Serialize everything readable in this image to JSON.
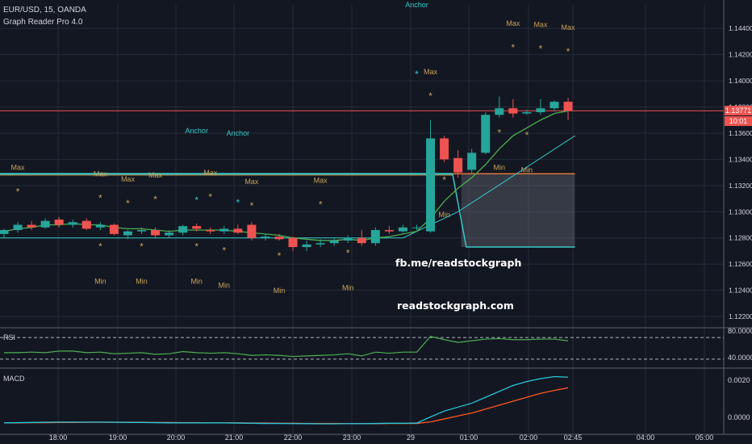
{
  "header": {
    "symbol_line": "EUR/USD, 15, OANDA",
    "indicator_line": "Graph Reader Pro 4.0"
  },
  "watermarks": {
    "facebook": "fb.me/readstockgraph",
    "website": "readstockgraph.com"
  },
  "price_tag": {
    "value": "1.13771",
    "countdown": "10:01",
    "color": "#ef5350"
  },
  "panes": {
    "rsi": {
      "label": "RSI",
      "levels": [
        "80.0000",
        "40.0000"
      ]
    },
    "macd": {
      "label": "MACD",
      "levels": [
        "0.0020",
        "0.0000"
      ]
    }
  },
  "colors": {
    "background": "#131722",
    "grid": "#262b3a",
    "up_candle": "#26a69a",
    "down_candle": "#ef5350",
    "annotation": "#c8a35a",
    "anchor": "#36c9c6",
    "ema": "#4caf50",
    "support_line": "#36c9c6",
    "rsi_line": "#4caf50",
    "macd_line": "#26c6da",
    "signal_line": "#ff5722"
  },
  "chart_data": {
    "type": "candlestick",
    "symbol": "EUR/USD",
    "interval": "15",
    "x_ticks": [
      "18:00",
      "19:00",
      "20:00",
      "21:00",
      "22:00",
      "23:00",
      "29",
      "01:00",
      "02:00",
      "02:45",
      "04:00",
      "05:00"
    ],
    "y_ticks": [
      "1.14400",
      "1.14200",
      "1.14000",
      "1.13800",
      "1.13600",
      "1.13400",
      "1.13200",
      "1.13000",
      "1.12800",
      "1.12600",
      "1.12400",
      "1.12200"
    ],
    "ylim": [
      1.1212,
      1.1458
    ],
    "candles": [
      [
        1.1283,
        1.1287,
        1.128,
        1.1286
      ],
      [
        1.1286,
        1.1292,
        1.1284,
        1.129
      ],
      [
        1.129,
        1.1293,
        1.1286,
        1.1288
      ],
      [
        1.1288,
        1.1295,
        1.1287,
        1.1293
      ],
      [
        1.1294,
        1.1296,
        1.1288,
        1.129
      ],
      [
        1.129,
        1.1294,
        1.1288,
        1.1292
      ],
      [
        1.1293,
        1.1295,
        1.1286,
        1.1287
      ],
      [
        1.1288,
        1.1292,
        1.1286,
        1.129
      ],
      [
        1.129,
        1.1291,
        1.1282,
        1.1283
      ],
      [
        1.1282,
        1.1286,
        1.1279,
        1.1285
      ],
      [
        1.1285,
        1.1288,
        1.1283,
        1.1286
      ],
      [
        1.1286,
        1.1288,
        1.128,
        1.1282
      ],
      [
        1.1282,
        1.1286,
        1.128,
        1.1284
      ],
      [
        1.1284,
        1.129,
        1.1282,
        1.1289
      ],
      [
        1.1289,
        1.1291,
        1.1285,
        1.1287
      ],
      [
        1.1286,
        1.1288,
        1.1283,
        1.1285
      ],
      [
        1.1285,
        1.1289,
        1.1283,
        1.1287
      ],
      [
        1.1287,
        1.129,
        1.1283,
        1.1284
      ],
      [
        1.129,
        1.1292,
        1.1278,
        1.128
      ],
      [
        1.128,
        1.1283,
        1.1278,
        1.1281
      ],
      [
        1.1281,
        1.1283,
        1.1278,
        1.1279
      ],
      [
        1.128,
        1.1281,
        1.127,
        1.1273
      ],
      [
        1.1273,
        1.1278,
        1.127,
        1.1275
      ],
      [
        1.1275,
        1.1279,
        1.1273,
        1.1276
      ],
      [
        1.1276,
        1.128,
        1.1274,
        1.1278
      ],
      [
        1.1278,
        1.1282,
        1.1276,
        1.128
      ],
      [
        1.128,
        1.1286,
        1.1274,
        1.1276
      ],
      [
        1.1276,
        1.1288,
        1.1274,
        1.1286
      ],
      [
        1.1286,
        1.1289,
        1.1283,
        1.1285
      ],
      [
        1.1285,
        1.129,
        1.1284,
        1.1288
      ],
      [
        1.1288,
        1.129,
        1.1286,
        1.1288
      ],
      [
        1.1285,
        1.137,
        1.1284,
        1.1356
      ],
      [
        1.1356,
        1.1358,
        1.1338,
        1.134
      ],
      [
        1.1341,
        1.1347,
        1.1326,
        1.133
      ],
      [
        1.1332,
        1.1348,
        1.1329,
        1.1345
      ],
      [
        1.1345,
        1.1376,
        1.1344,
        1.1374
      ],
      [
        1.1374,
        1.1388,
        1.1372,
        1.1379
      ],
      [
        1.1379,
        1.1386,
        1.1372,
        1.1375
      ],
      [
        1.1375,
        1.1378,
        1.1374,
        1.1376
      ],
      [
        1.1376,
        1.1386,
        1.1374,
        1.1379
      ],
      [
        1.1379,
        1.1385,
        1.1377,
        1.1384
      ],
      [
        1.1384,
        1.1387,
        1.137,
        1.13771
      ]
    ],
    "ema": [
      1.1285,
      1.1287,
      1.1288,
      1.129,
      1.129,
      1.1291,
      1.129,
      1.129,
      1.1288,
      1.1287,
      1.1287,
      1.1286,
      1.1285,
      1.1286,
      1.1286,
      1.1286,
      1.1286,
      1.1285,
      1.1284,
      1.1283,
      1.1282,
      1.128,
      1.1279,
      1.1278,
      1.1278,
      1.1279,
      1.1278,
      1.128,
      1.1281,
      1.1283,
      1.1285,
      1.1295,
      1.1308,
      1.1318,
      1.1326,
      1.1336,
      1.1348,
      1.1358,
      1.1364,
      1.137,
      1.1375,
      1.1377
    ],
    "reference_lines": [
      {
        "price": 1.13771,
        "color": "#ef5350"
      },
      {
        "price": 1.1329,
        "color": "#36c9c6"
      }
    ],
    "max_labels": [
      {
        "text": "Max",
        "candle": 1,
        "price": 1.1332
      },
      {
        "text": "Max",
        "candle": 7,
        "price": 1.1327
      },
      {
        "text": "Max",
        "candle": 9,
        "price": 1.1323
      },
      {
        "text": "Max",
        "candle": 11,
        "price": 1.1326
      },
      {
        "text": "Max",
        "candle": 15,
        "price": 1.1328
      },
      {
        "text": "Max",
        "candle": 18,
        "price": 1.1321
      },
      {
        "text": "Max",
        "candle": 23,
        "price": 1.1322
      },
      {
        "text": "Max",
        "candle": 31,
        "price": 1.1405
      },
      {
        "text": "Max",
        "candle": 37,
        "price": 1.1442
      },
      {
        "text": "Max",
        "candle": 39,
        "price": 1.1441
      },
      {
        "text": "Max",
        "candle": 41,
        "price": 1.1439
      }
    ],
    "min_labels": [
      {
        "text": "Min",
        "candle": 7,
        "price": 1.1245
      },
      {
        "text": "Min",
        "candle": 10,
        "price": 1.1245
      },
      {
        "text": "Min",
        "candle": 14,
        "price": 1.1245
      },
      {
        "text": "Min",
        "candle": 16,
        "price": 1.1242
      },
      {
        "text": "Min",
        "candle": 20,
        "price": 1.1238
      },
      {
        "text": "Min",
        "candle": 25,
        "price": 1.124
      },
      {
        "text": "Min",
        "candle": 32,
        "price": 1.1296
      },
      {
        "text": "Min",
        "candle": 36,
        "price": 1.1332
      },
      {
        "text": "Min",
        "candle": 38,
        "price": 1.133
      }
    ],
    "anchor_labels": [
      {
        "text": "Anchor",
        "candle": 30,
        "price": 1.1456
      },
      {
        "text": "Anchor",
        "candle": 14,
        "price": 1.136
      },
      {
        "text": "Anchor",
        "candle": 17,
        "price": 1.1358
      }
    ],
    "rsi": {
      "ylim": [
        25,
        95
      ],
      "levels": [
        80,
        40
      ],
      "values": [
        52,
        52,
        53,
        52,
        55,
        55,
        52,
        53,
        50,
        51,
        52,
        49,
        50,
        54,
        52,
        51,
        52,
        50,
        47,
        48,
        47,
        45,
        46,
        47,
        48,
        50,
        46,
        53,
        51,
        53,
        53,
        82,
        76,
        71,
        74,
        77,
        78,
        76,
        76,
        77,
        77,
        74
      ]
    },
    "macd": {
      "ylim": [
        -0.0005,
        0.0027
      ],
      "levels": [
        0.002,
        0.0
      ],
      "macd": [
        0.0,
        1e-05,
        2e-05,
        3e-05,
        4e-05,
        4e-05,
        4e-05,
        4e-05,
        3e-05,
        2e-05,
        2e-05,
        1e-05,
        0.0,
        0.0,
        0.0,
        0.0,
        0.0,
        -1e-05,
        -2e-05,
        -3e-05,
        -3e-05,
        -4e-05,
        -4e-05,
        -5e-05,
        -5e-05,
        -4e-05,
        -4e-05,
        -3e-05,
        -2e-05,
        -2e-05,
        -1e-05,
        0.0003,
        0.0006,
        0.0008,
        0.001,
        0.0013,
        0.0016,
        0.0019,
        0.0021,
        0.00225,
        0.00235,
        0.00232
      ],
      "signal": [
        0.0,
        0.0,
        1e-05,
        1e-05,
        2e-05,
        2e-05,
        3e-05,
        3e-05,
        3e-05,
        3e-05,
        3e-05,
        2e-05,
        2e-05,
        1e-05,
        1e-05,
        0.0,
        0.0,
        0.0,
        -1e-05,
        -1e-05,
        -2e-05,
        -2e-05,
        -3e-05,
        -3e-05,
        -3e-05,
        -4e-05,
        -4e-05,
        -4e-05,
        -3e-05,
        -3e-05,
        -3e-05,
        5e-05,
        0.0002,
        0.00035,
        0.0005,
        0.0007,
        0.0009,
        0.0011,
        0.0013,
        0.0015,
        0.00165,
        0.00178
      ]
    }
  }
}
